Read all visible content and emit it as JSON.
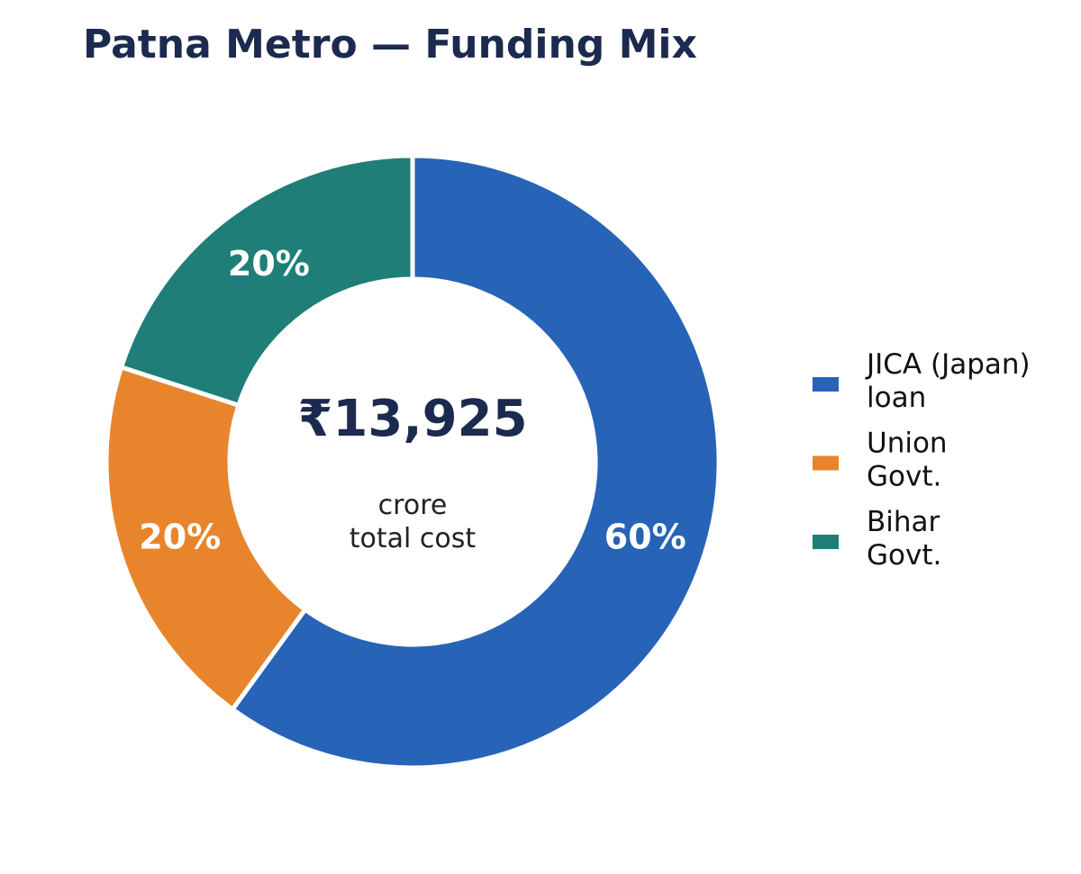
{
  "chart_data": {
    "type": "donut",
    "title": "Patna Metro — Funding Mix",
    "center_label": "₹13,925",
    "center_sublabel": "crore total cost",
    "categories": [
      "JICA (Japan) loan",
      "Union Govt.",
      "Bihar Govt."
    ],
    "values": [
      60,
      20,
      20
    ],
    "value_labels": [
      "60%",
      "20%",
      "20%"
    ],
    "colors": [
      "#2763b7",
      "#e8852c",
      "#1f7e78"
    ],
    "legend": "right"
  }
}
